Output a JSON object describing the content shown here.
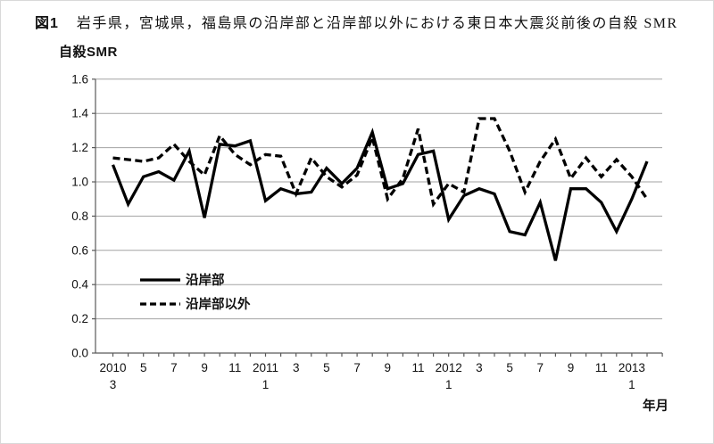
{
  "figure": {
    "caption_label": "図1",
    "caption_text": "岩手県，宮城県，福島県の沿岸部と沿岸部以外における東日本大震災前後の自殺 SMR",
    "y_axis_title": "自殺SMR",
    "x_axis_title": "年月"
  },
  "chart_data": {
    "type": "line",
    "title": "岩手県，宮城県，福島県の沿岸部と沿岸部以外における東日本大震災前後の自殺SMR",
    "ylabel": "自殺SMR",
    "xlabel": "年月",
    "ylim": [
      0.0,
      1.6
    ],
    "ytick_step": 0.2,
    "grid": "horizontal",
    "legend_position": "inside-lower-left",
    "line_color": "#000000",
    "gridline_color": "#a3a3a3",
    "x": [
      "2010/3",
      "2010/4",
      "2010/5",
      "2010/6",
      "2010/7",
      "2010/8",
      "2010/9",
      "2010/10",
      "2010/11",
      "2010/12",
      "2011/1",
      "2011/2",
      "2011/3",
      "2011/4",
      "2011/5",
      "2011/6",
      "2011/7",
      "2011/8",
      "2011/9",
      "2011/10",
      "2011/11",
      "2011/12",
      "2012/1",
      "2012/2",
      "2012/3",
      "2012/4",
      "2012/5",
      "2012/6",
      "2012/7",
      "2012/8",
      "2012/9",
      "2012/10",
      "2012/11",
      "2012/12",
      "2013/1",
      "2013/2"
    ],
    "x_tick_labels": [
      {
        "i": 0,
        "top": "2010",
        "bottom": "3"
      },
      {
        "i": 2,
        "top": "5"
      },
      {
        "i": 4,
        "top": "7"
      },
      {
        "i": 6,
        "top": "9"
      },
      {
        "i": 8,
        "top": "11"
      },
      {
        "i": 10,
        "top": "2011",
        "bottom": "1"
      },
      {
        "i": 12,
        "top": "3"
      },
      {
        "i": 14,
        "top": "5"
      },
      {
        "i": 16,
        "top": "7"
      },
      {
        "i": 18,
        "top": "9"
      },
      {
        "i": 20,
        "top": "11"
      },
      {
        "i": 22,
        "top": "2012",
        "bottom": "1"
      },
      {
        "i": 24,
        "top": "3"
      },
      {
        "i": 26,
        "top": "5"
      },
      {
        "i": 28,
        "top": "7"
      },
      {
        "i": 30,
        "top": "9"
      },
      {
        "i": 32,
        "top": "11"
      },
      {
        "i": 34,
        "top": "2013",
        "bottom": "1"
      }
    ],
    "series": [
      {
        "name": "沿岸部",
        "style": "solid",
        "color": "#000000",
        "values": [
          1.1,
          0.87,
          1.03,
          1.06,
          1.01,
          1.18,
          0.79,
          1.22,
          1.21,
          1.24,
          0.89,
          0.96,
          0.93,
          0.94,
          1.08,
          0.99,
          1.08,
          1.29,
          0.96,
          0.99,
          1.16,
          1.18,
          0.78,
          0.92,
          0.96,
          0.93,
          0.71,
          0.69,
          0.88,
          0.54,
          0.96,
          0.96,
          0.88,
          0.71,
          0.9,
          1.12
        ]
      },
      {
        "name": "沿岸部以外",
        "style": "dashed",
        "color": "#000000",
        "values": [
          1.14,
          1.13,
          1.12,
          1.14,
          1.22,
          1.12,
          1.04,
          1.27,
          1.16,
          1.1,
          1.16,
          1.15,
          0.93,
          1.14,
          1.03,
          0.97,
          1.04,
          1.26,
          0.9,
          1.02,
          1.31,
          0.87,
          0.99,
          0.94,
          1.37,
          1.37,
          1.18,
          0.94,
          1.12,
          1.25,
          1.02,
          1.14,
          1.03,
          1.13,
          1.03,
          0.9
        ]
      }
    ]
  }
}
